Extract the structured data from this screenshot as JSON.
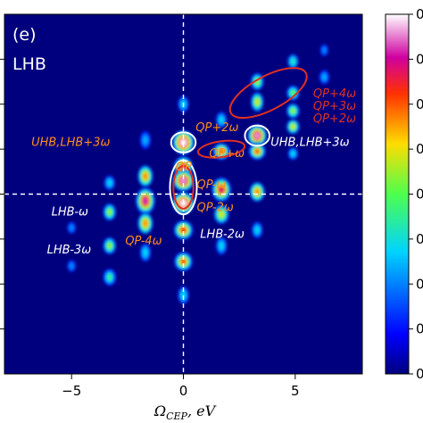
{
  "panel": {
    "letter": "(e)",
    "name": "LHB"
  },
  "chart_data": {
    "type": "heatmap",
    "xlabel": "Ω_CEP, eV",
    "xlim": [
      -8,
      8
    ],
    "xticks": [
      {
        "value": -5,
        "label": "−5"
      },
      {
        "value": 0,
        "label": "0"
      },
      {
        "value": 5,
        "label": "5"
      }
    ],
    "ylim": [
      -8,
      8
    ],
    "reference_lines": {
      "vertical_x": 0,
      "horizontal_y": 0,
      "style": "dashed white"
    },
    "colormap": "jet",
    "colorbar": {
      "tick_fractions": [
        0,
        0.125,
        0.25,
        0.375,
        0.5,
        0.625,
        0.75,
        0.875,
        1.0
      ],
      "tick_labels": [
        "0",
        "0",
        "0",
        "0",
        "0",
        "0",
        "0",
        "0",
        "0"
      ]
    },
    "blobs": [
      {
        "x": 0,
        "y": 2.3,
        "sx": 0.45,
        "sy": 0.5,
        "v": 1.0
      },
      {
        "x": 0,
        "y": 1.2,
        "sx": 0.4,
        "sy": 0.45,
        "v": 0.85
      },
      {
        "x": 0,
        "y": 0.6,
        "sx": 0.45,
        "sy": 0.45,
        "v": 0.95
      },
      {
        "x": 0,
        "y": -0.4,
        "sx": 0.45,
        "sy": 0.45,
        "v": 1.0
      },
      {
        "x": 0,
        "y": -1.6,
        "sx": 0.4,
        "sy": 0.4,
        "v": 0.8
      },
      {
        "x": 0,
        "y": -3.0,
        "sx": 0.38,
        "sy": 0.4,
        "v": 0.75
      },
      {
        "x": 0,
        "y": -4.5,
        "sx": 0.3,
        "sy": 0.5,
        "v": 0.35
      },
      {
        "x": 0,
        "y": 4.0,
        "sx": 0.3,
        "sy": 0.45,
        "v": 0.35
      },
      {
        "x": -1.7,
        "y": 0.8,
        "sx": 0.35,
        "sy": 0.5,
        "v": 0.7
      },
      {
        "x": -1.7,
        "y": -0.3,
        "sx": 0.4,
        "sy": 0.55,
        "v": 0.9
      },
      {
        "x": -1.7,
        "y": -1.3,
        "sx": 0.35,
        "sy": 0.5,
        "v": 0.7
      },
      {
        "x": -1.7,
        "y": -2.6,
        "sx": 0.3,
        "sy": 0.5,
        "v": 0.35
      },
      {
        "x": -1.7,
        "y": 2.4,
        "sx": 0.3,
        "sy": 0.5,
        "v": 0.3
      },
      {
        "x": -3.3,
        "y": -0.8,
        "sx": 0.3,
        "sy": 0.4,
        "v": 0.55
      },
      {
        "x": -3.3,
        "y": -2.3,
        "sx": 0.3,
        "sy": 0.4,
        "v": 0.55
      },
      {
        "x": -3.3,
        "y": -3.7,
        "sx": 0.3,
        "sy": 0.4,
        "v": 0.45
      },
      {
        "x": -3.3,
        "y": 0.5,
        "sx": 0.3,
        "sy": 0.4,
        "v": 0.35
      },
      {
        "x": -5.0,
        "y": -1.5,
        "sx": 0.3,
        "sy": 0.4,
        "v": 0.25
      },
      {
        "x": -5.0,
        "y": -3.2,
        "sx": 0.3,
        "sy": 0.4,
        "v": 0.25
      },
      {
        "x": 1.7,
        "y": 1.9,
        "sx": 0.35,
        "sy": 0.35,
        "v": 0.75
      },
      {
        "x": 1.7,
        "y": 0.2,
        "sx": 0.4,
        "sy": 0.5,
        "v": 0.85
      },
      {
        "x": 1.7,
        "y": -0.9,
        "sx": 0.35,
        "sy": 0.45,
        "v": 0.6
      },
      {
        "x": 1.7,
        "y": -2.3,
        "sx": 0.3,
        "sy": 0.5,
        "v": 0.35
      },
      {
        "x": 1.7,
        "y": 3.3,
        "sx": 0.3,
        "sy": 0.45,
        "v": 0.35
      },
      {
        "x": 3.3,
        "y": 2.6,
        "sx": 0.4,
        "sy": 0.45,
        "v": 0.95
      },
      {
        "x": 3.3,
        "y": 1.9,
        "sx": 0.35,
        "sy": 0.35,
        "v": 0.75
      },
      {
        "x": 3.3,
        "y": 0.1,
        "sx": 0.35,
        "sy": 0.45,
        "v": 0.7
      },
      {
        "x": 3.3,
        "y": 4.1,
        "sx": 0.3,
        "sy": 0.45,
        "v": 0.6
      },
      {
        "x": 3.3,
        "y": 5.0,
        "sx": 0.3,
        "sy": 0.4,
        "v": 0.55
      },
      {
        "x": 3.3,
        "y": -1.6,
        "sx": 0.3,
        "sy": 0.45,
        "v": 0.35
      },
      {
        "x": 4.9,
        "y": 3.0,
        "sx": 0.3,
        "sy": 0.35,
        "v": 0.6
      },
      {
        "x": 4.9,
        "y": 3.7,
        "sx": 0.3,
        "sy": 0.35,
        "v": 0.55
      },
      {
        "x": 4.9,
        "y": 4.5,
        "sx": 0.3,
        "sy": 0.35,
        "v": 0.5
      },
      {
        "x": 4.9,
        "y": 5.9,
        "sx": 0.3,
        "sy": 0.4,
        "v": 0.4
      },
      {
        "x": 4.9,
        "y": 1.8,
        "sx": 0.28,
        "sy": 0.35,
        "v": 0.35
      },
      {
        "x": 6.3,
        "y": 5.2,
        "sx": 0.28,
        "sy": 0.4,
        "v": 0.3
      },
      {
        "x": 6.3,
        "y": 6.4,
        "sx": 0.28,
        "sy": 0.4,
        "v": 0.25
      }
    ],
    "ellipses": [
      {
        "cx": 0,
        "cy": 2.3,
        "rx": 0.55,
        "ry": 0.45,
        "stroke": "#ffffff",
        "rotate": 0
      },
      {
        "cx": 0,
        "cy": 0.3,
        "rx": 0.6,
        "ry": 1.2,
        "stroke": "#ffffff",
        "rotate": 0
      },
      {
        "cx": 0,
        "cy": 0.3,
        "rx": 0.45,
        "ry": 0.95,
        "stroke": "#e03020",
        "rotate": 0
      },
      {
        "cx": 1.7,
        "cy": 2.0,
        "rx": 1.05,
        "ry": 0.35,
        "stroke": "#e03020",
        "rotate": -8
      },
      {
        "cx": 3.3,
        "cy": 2.6,
        "rx": 0.55,
        "ry": 0.45,
        "stroke": "#ffffff",
        "rotate": 0
      },
      {
        "cx": 3.8,
        "cy": 4.5,
        "rx": 1.9,
        "ry": 0.75,
        "stroke": "#e03020",
        "rotate": -28
      }
    ],
    "annotations": [
      {
        "text": "UHB,LHB+3ω",
        "x": -6.8,
        "y": 2.15,
        "color": "#ff8c1a"
      },
      {
        "text": "UHB,LHB+3ω",
        "x": 3.9,
        "y": 2.15,
        "color": "#ffffff"
      },
      {
        "text": "QP+2ω",
        "x": 0.55,
        "y": 2.8,
        "color": "#ff8c1a"
      },
      {
        "text": "QP+ω",
        "x": 1.15,
        "y": 1.65,
        "color": "#ff8c1a"
      },
      {
        "text": "QP",
        "x": -0.35,
        "y": 1.05,
        "color": "#ff8c1a"
      },
      {
        "text": "QP-ω",
        "x": 0.6,
        "y": 0.25,
        "color": "#ff8c1a"
      },
      {
        "text": "QP-2ω",
        "x": 0.6,
        "y": -0.75,
        "color": "#ff8c1a"
      },
      {
        "text": "QP-4ω",
        "x": -2.6,
        "y": -2.25,
        "color": "#ff8c1a"
      },
      {
        "text": "LHB-ω",
        "x": -5.9,
        "y": -0.95,
        "color": "#ffffff"
      },
      {
        "text": "LHB-3ω",
        "x": -6.1,
        "y": -2.65,
        "color": "#ffffff"
      },
      {
        "text": "LHB-2ω",
        "x": 0.75,
        "y": -1.95,
        "color": "#ffffff"
      },
      {
        "text": "QP+4ω",
        "x": 5.8,
        "y": 4.3,
        "color": "#e03020"
      },
      {
        "text": "QP+3ω",
        "x": 5.8,
        "y": 3.75,
        "color": "#e03020"
      },
      {
        "text": "QP+2ω",
        "x": 5.8,
        "y": 3.2,
        "color": "#e03020"
      }
    ]
  }
}
